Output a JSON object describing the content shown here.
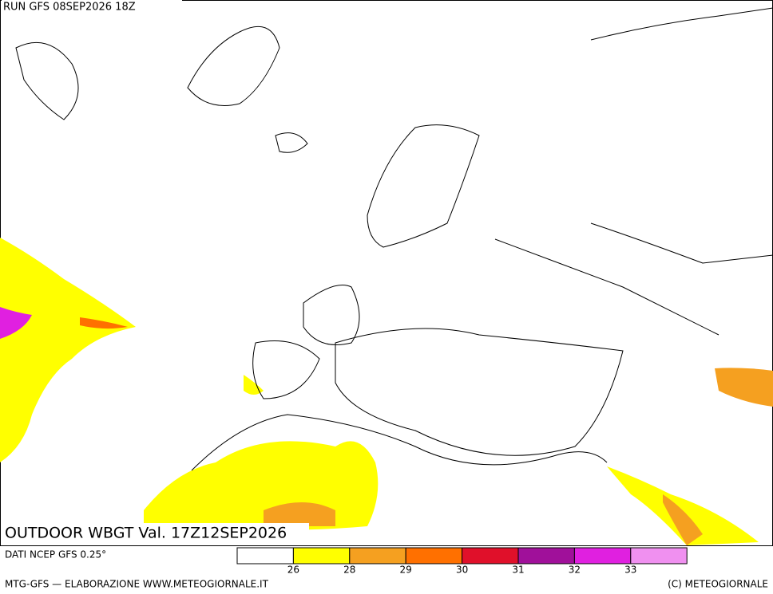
{
  "header": {
    "run": "RUN GFS 08SEP2026 18Z"
  },
  "map": {
    "title": "OUTDOOR WBGT Val. 17Z12SEP2026"
  },
  "legend": {
    "source": "DATI NCEP GFS 0.25°",
    "colors": [
      "#ffffff",
      "#ffff00",
      "#f5a020",
      "#ff7000",
      "#e0102a",
      "#a0109a",
      "#e020e0",
      "#f090f0"
    ],
    "ticks": [
      26,
      28,
      29,
      30,
      31,
      32,
      33
    ]
  },
  "footer": {
    "left": "MTG-GFS — ELABORAZIONE WWW.METEOGIORNALE.IT",
    "right": "(C) METEOGIORNALE"
  }
}
